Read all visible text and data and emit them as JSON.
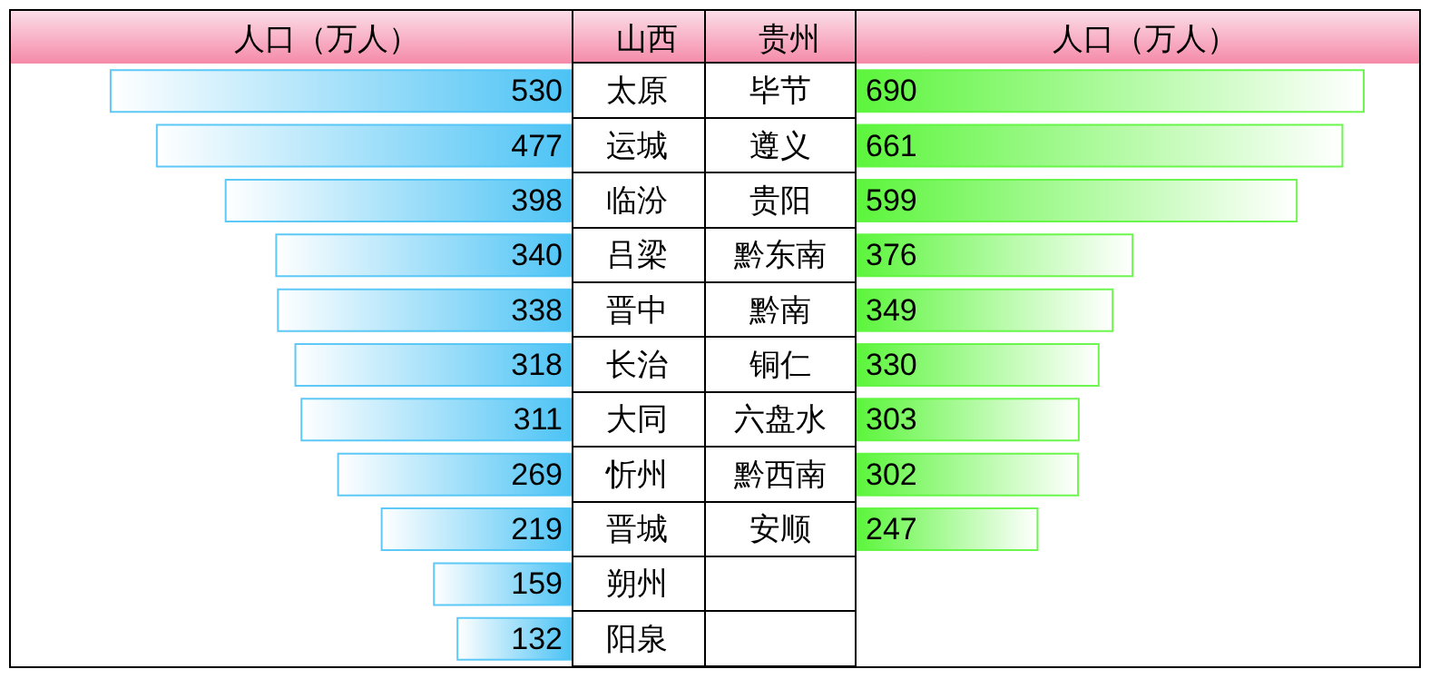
{
  "chart_data": [
    {
      "type": "bar",
      "orientation": "horizontal",
      "title": "人口（万人）",
      "ylabel": "山西",
      "categories": [
        "太原",
        "运城",
        "临汾",
        "吕梁",
        "晋中",
        "长治",
        "大同",
        "忻州",
        "晋城",
        "朔州",
        "阳泉"
      ],
      "values": [
        530,
        477,
        398,
        340,
        338,
        318,
        311,
        269,
        219,
        159,
        132
      ],
      "color": "#4cc3f5",
      "tick_labels": "y",
      "data_labels": true
    },
    {
      "type": "bar",
      "orientation": "horizontal",
      "title": "人口（万人）",
      "ylabel": "贵州",
      "categories": [
        "毕节",
        "遵义",
        "贵阳",
        "黔东南",
        "黔南",
        "铜仁",
        "六盘水",
        "黔西南",
        "安顺",
        null,
        null
      ],
      "values": [
        690,
        661,
        599,
        376,
        349,
        330,
        303,
        302,
        247,
        null,
        null
      ],
      "color": "#5cf53c",
      "tick_labels": "y",
      "data_labels": true
    }
  ]
}
